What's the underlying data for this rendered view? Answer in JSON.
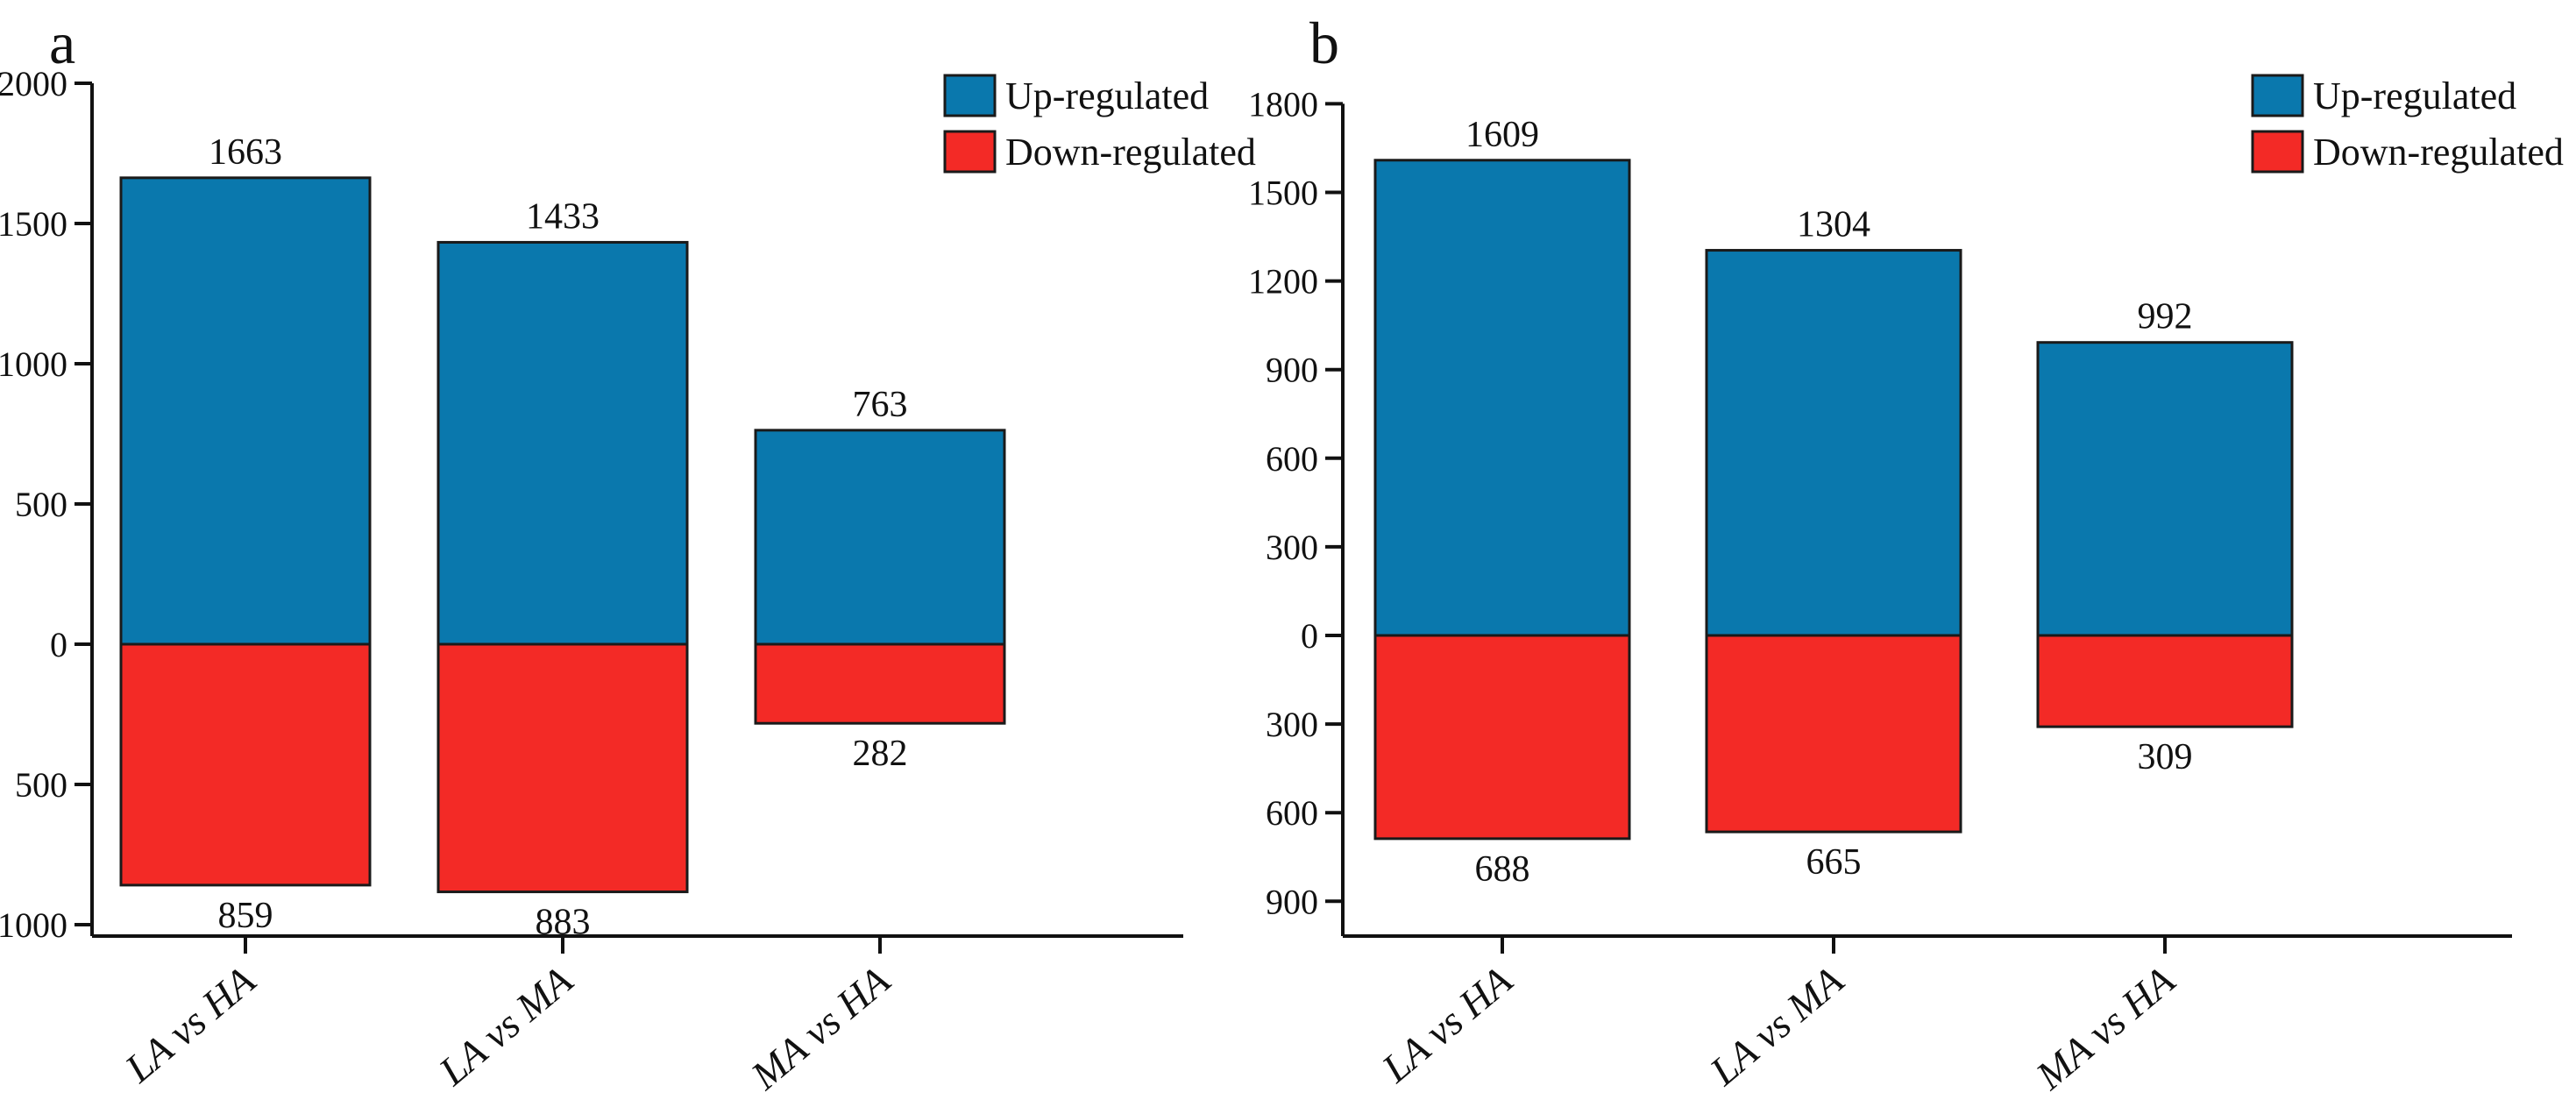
{
  "figure": {
    "background": "#ffffff",
    "panel_labels": [
      "a",
      "b"
    ],
    "legend": {
      "up_label": "Up-regulated",
      "down_label": "Down-regulated",
      "position": "top-right"
    },
    "colors": {
      "up": "#0a78ad",
      "down": "#f32a26",
      "bar_border": "#1a1a1a",
      "axis": "#111111",
      "text": "#111111"
    }
  },
  "chart_data": [
    {
      "type": "bar",
      "panel_label": "a",
      "categories": [
        "LA vs HA",
        "LA vs MA",
        "MA vs HA"
      ],
      "series": [
        {
          "name": "Up-regulated",
          "direction": "up",
          "color": "#0a78ad",
          "values": [
            1663,
            1433,
            763
          ]
        },
        {
          "name": "Down-regulated",
          "direction": "down",
          "color": "#f32a26",
          "values": [
            859,
            883,
            282
          ]
        }
      ],
      "ylim": [
        -1000,
        2000
      ],
      "ytick_step": 500,
      "ytick_labels_absolute": true,
      "yticks": [
        2000,
        1500,
        1000,
        500,
        0,
        -500,
        -1000
      ],
      "ytick_labels": [
        "2000",
        "1500",
        "1000",
        "500",
        "0",
        "500",
        "1000"
      ],
      "legend_entries": [
        "Up-regulated",
        "Down-regulated"
      ],
      "legend_position": "top-right",
      "grid": false
    },
    {
      "type": "bar",
      "panel_label": "b",
      "categories": [
        "LA vs HA",
        "LA vs MA",
        "MA vs HA"
      ],
      "series": [
        {
          "name": "Up-regulated",
          "direction": "up",
          "color": "#0a78ad",
          "values": [
            1609,
            1304,
            992
          ]
        },
        {
          "name": "Down-regulated",
          "direction": "down",
          "color": "#f32a26",
          "values": [
            688,
            665,
            309
          ]
        }
      ],
      "ylim": [
        -900,
        1800
      ],
      "ytick_step": 300,
      "ytick_labels_absolute": true,
      "yticks": [
        1800,
        1500,
        1200,
        900,
        600,
        300,
        0,
        -300,
        -600,
        -900
      ],
      "ytick_labels": [
        "1800",
        "1500",
        "1200",
        "900",
        "600",
        "300",
        "0",
        "300",
        "600",
        "900"
      ],
      "legend_entries": [
        "Up-regulated",
        "Down-regulated"
      ],
      "legend_position": "top-right",
      "grid": false
    }
  ]
}
